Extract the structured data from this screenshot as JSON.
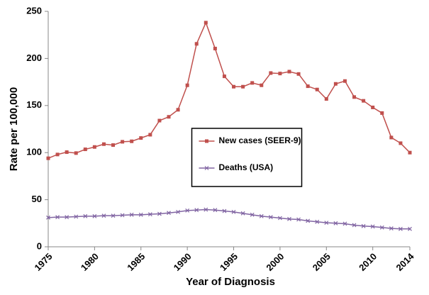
{
  "chart_data": {
    "type": "line",
    "x": [
      1975,
      1976,
      1977,
      1978,
      1979,
      1980,
      1981,
      1982,
      1983,
      1984,
      1985,
      1986,
      1987,
      1988,
      1989,
      1990,
      1991,
      1992,
      1993,
      1994,
      1995,
      1996,
      1997,
      1998,
      1999,
      2000,
      2001,
      2002,
      2003,
      2004,
      2005,
      2006,
      2007,
      2008,
      2009,
      2010,
      2011,
      2012,
      2013,
      2014
    ],
    "series": [
      {
        "name": "New cases (SEER-9)",
        "color": "#c0504d",
        "marker": "square",
        "values": [
          94,
          98,
          100.5,
          99.5,
          103.5,
          106,
          109,
          108,
          111.5,
          112,
          115.5,
          119,
          134,
          138,
          145.5,
          171.5,
          215.5,
          238,
          210.5,
          181,
          170,
          170,
          174,
          171.5,
          184.5,
          184,
          186,
          183.5,
          170.5,
          167,
          157,
          173,
          176,
          159,
          155,
          148,
          142,
          116,
          110,
          100
        ]
      },
      {
        "name": "Deaths (USA)",
        "color": "#8064a2",
        "marker": "x",
        "values": [
          31,
          31.5,
          31.5,
          32,
          32.5,
          32.5,
          33,
          33,
          33.5,
          34,
          34,
          34.5,
          35,
          36,
          37,
          38.5,
          39,
          39.5,
          39,
          38,
          37,
          35.5,
          34,
          32.5,
          31.5,
          30.5,
          29.5,
          29,
          27.5,
          26.5,
          25.5,
          25,
          24.5,
          23,
          22,
          21.5,
          20.5,
          19.5,
          19,
          19
        ]
      }
    ],
    "x_label": "Year of Diagnosis",
    "y_label": "Rate per 100,000",
    "xlim": [
      1975,
      2014
    ],
    "xticks": [
      1975,
      1980,
      1985,
      1990,
      1995,
      2000,
      2005,
      2010,
      2014
    ],
    "ylim": [
      0,
      250
    ],
    "yticks": [
      0,
      50,
      100,
      150,
      200,
      250
    ],
    "grid": false,
    "legend": "center"
  }
}
